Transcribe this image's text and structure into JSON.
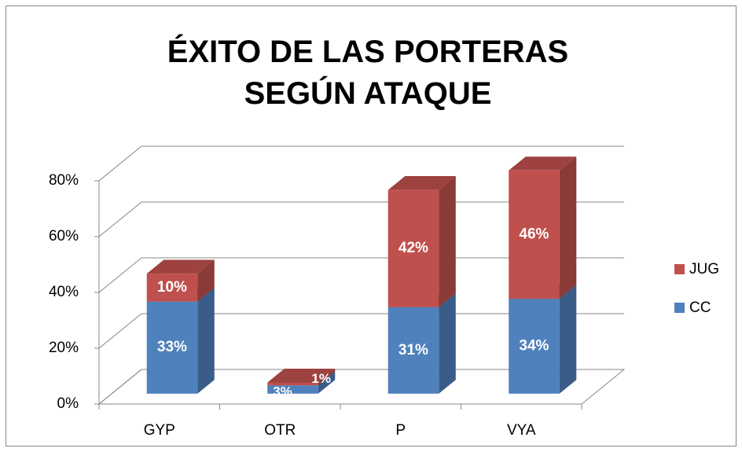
{
  "chart_data": {
    "type": "bar3d_stacked",
    "title": "ÉXITO DE LAS PORTERAS SEGÚN ATAQUE",
    "categories": [
      "GYP",
      "OTR",
      "P",
      "VYA"
    ],
    "series": [
      {
        "name": "CC",
        "color": "#4f81bd",
        "values": [
          33,
          3,
          31,
          34
        ],
        "value_labels": [
          "33%",
          "3%",
          "31%",
          "34%"
        ]
      },
      {
        "name": "JUG",
        "color": "#c0504d",
        "values": [
          10,
          1,
          42,
          46
        ],
        "value_labels": [
          "10%",
          "1%",
          "42%",
          "46%"
        ]
      }
    ],
    "ylim": [
      0,
      80
    ],
    "yticks": [
      {
        "value": 0,
        "label": "0%"
      },
      {
        "value": 20,
        "label": "20%"
      },
      {
        "value": 40,
        "label": "40%"
      },
      {
        "value": 60,
        "label": "60%"
      },
      {
        "value": 80,
        "label": "80%"
      }
    ],
    "grid": true,
    "legend": "right"
  }
}
